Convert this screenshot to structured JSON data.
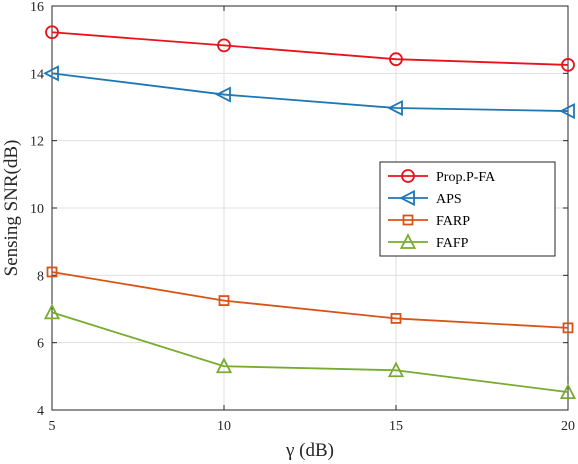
{
  "chart_data": {
    "type": "line",
    "xlabel": "γ (dB)",
    "ylabel": "Sensing SNR(dB)",
    "x": [
      5,
      10,
      15,
      20
    ],
    "xlim": [
      5,
      20
    ],
    "ylim": [
      4,
      16
    ],
    "xticks": [
      5,
      10,
      15,
      20
    ],
    "yticks": [
      4,
      6,
      8,
      10,
      12,
      14,
      16
    ],
    "grid": true,
    "legend_position": "right-center",
    "series": [
      {
        "name": "Prop.P-FA",
        "values": [
          15.22,
          14.83,
          14.42,
          14.25
        ],
        "color": "#e8121a",
        "marker": "circle"
      },
      {
        "name": "APS",
        "values": [
          14.0,
          13.37,
          12.97,
          12.88
        ],
        "color": "#1f77b4",
        "marker": "triangle-left"
      },
      {
        "name": "FARP",
        "values": [
          8.1,
          7.25,
          6.72,
          6.44
        ],
        "color": "#d95319",
        "marker": "square"
      },
      {
        "name": "FAFP",
        "values": [
          6.9,
          5.3,
          5.18,
          4.53
        ],
        "color": "#77ac30",
        "marker": "triangle-up"
      }
    ]
  }
}
